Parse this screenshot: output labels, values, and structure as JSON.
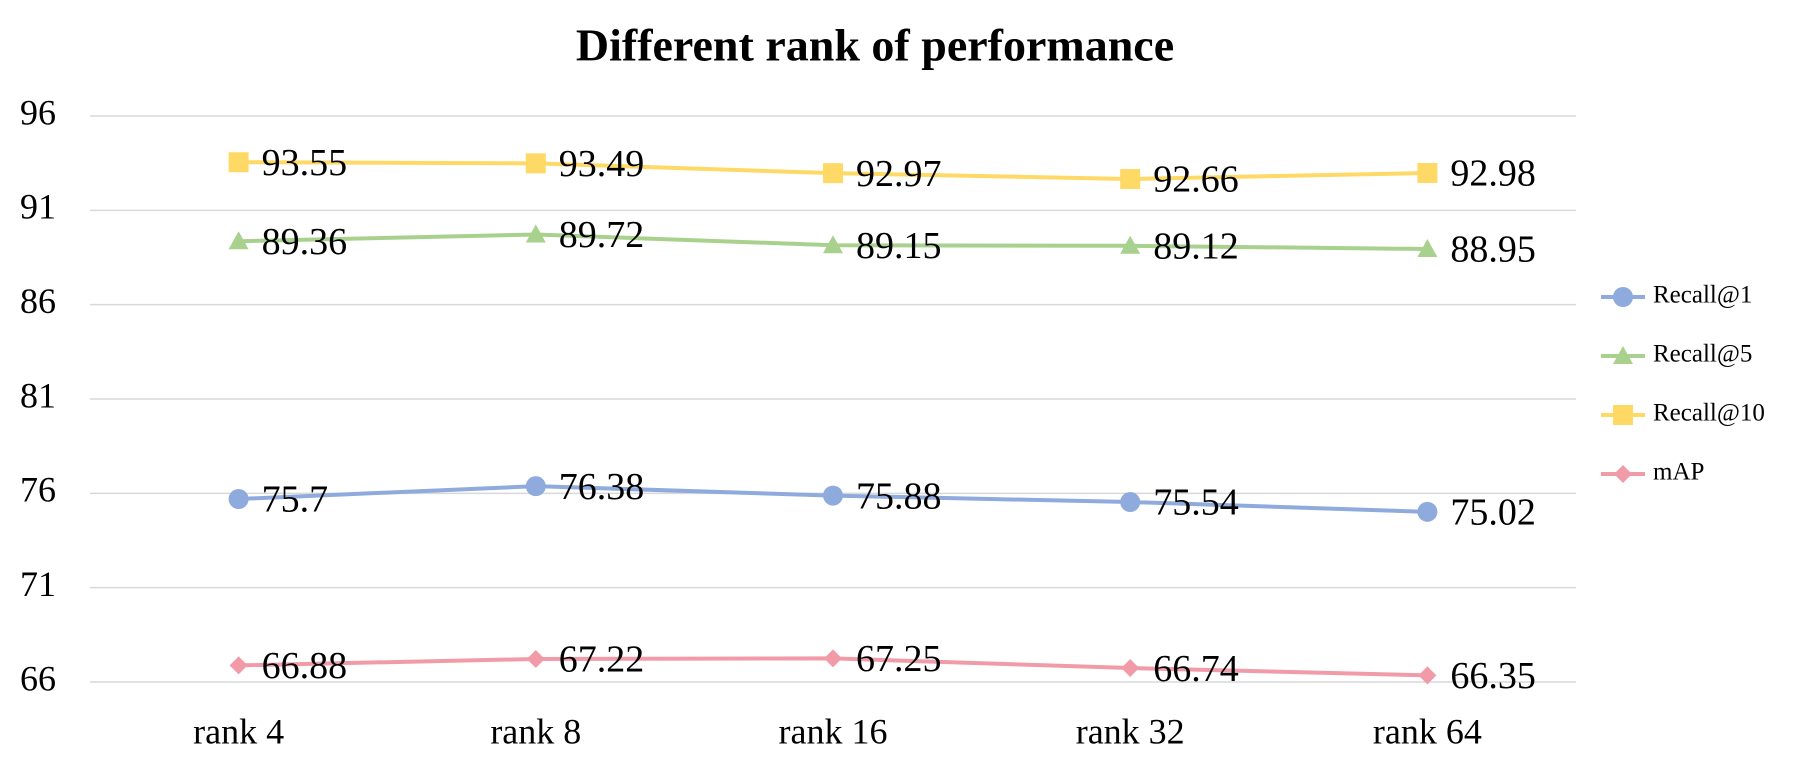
{
  "chart_data": {
    "type": "line",
    "title": "Different rank of performance",
    "categories": [
      "rank 4",
      "rank 8",
      "rank 16",
      "rank 32",
      "rank 64"
    ],
    "series": [
      {
        "name": "Recall@1",
        "color": "#8faadc",
        "marker": "circle",
        "values": [
          75.7,
          76.38,
          75.88,
          75.54,
          75.02
        ]
      },
      {
        "name": "Recall@5",
        "color": "#a9d18e",
        "marker": "triangle",
        "values": [
          89.36,
          89.72,
          89.15,
          89.12,
          88.95
        ]
      },
      {
        "name": "Recall@10",
        "color": "#ffd966",
        "marker": "square",
        "values": [
          93.55,
          93.49,
          92.97,
          92.66,
          92.98
        ]
      },
      {
        "name": "mAP",
        "color": "#f19ba9",
        "marker": "diamond",
        "values": [
          66.88,
          67.22,
          67.25,
          66.74,
          66.35
        ]
      }
    ],
    "ylim": [
      66,
      96
    ],
    "yticks": [
      66,
      71,
      76,
      81,
      86,
      91,
      96
    ],
    "grid": true,
    "legend": "right"
  }
}
